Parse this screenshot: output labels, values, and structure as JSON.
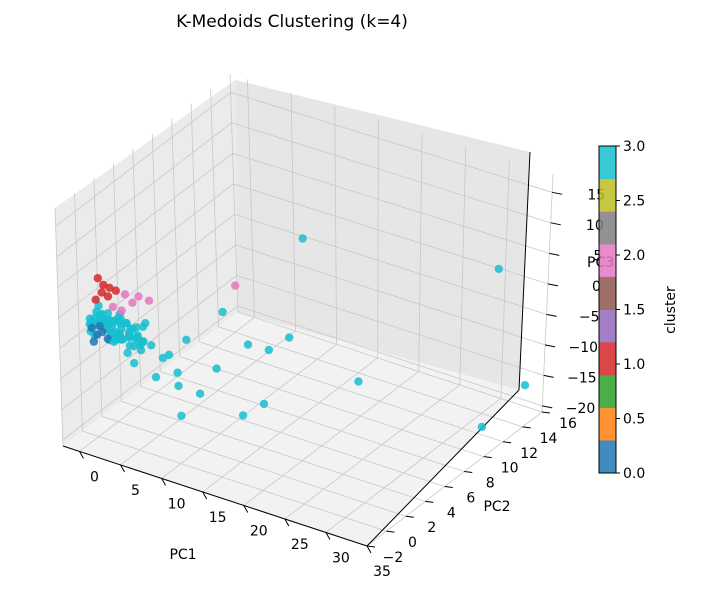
{
  "chart_data": {
    "type": "scatter",
    "projection": "3d",
    "title": "K-Medoids Clustering (k=4)",
    "xlabel": "PC1",
    "ylabel": "PC2",
    "zlabel": "PC3",
    "xlim": [
      -2,
      35
    ],
    "ylim": [
      -2,
      16
    ],
    "zlim": [
      -21,
      18
    ],
    "x_ticks": [
      "0",
      "5",
      "10",
      "15",
      "20",
      "25",
      "30",
      "35"
    ],
    "y_ticks": [
      "−2",
      "0",
      "2",
      "4",
      "6",
      "8",
      "10",
      "12",
      "14",
      "16"
    ],
    "z_ticks": [
      "−20",
      "−15",
      "−10",
      "−5",
      "0",
      "5",
      "10",
      "15"
    ],
    "grid": true,
    "colorbar": {
      "label": "cluster",
      "range": [
        0.0,
        3.0
      ],
      "ticks": [
        "0.0",
        "0.5",
        "1.0",
        "1.5",
        "2.0",
        "2.5",
        "3.0"
      ],
      "colormap": "tab10",
      "colors": [
        "#1f77b4",
        "#ff7f0e",
        "#2ca02c",
        "#d62728",
        "#9467bd",
        "#8c564b",
        "#e377c2",
        "#7f7f7f",
        "#bcbd22",
        "#17becf"
      ]
    },
    "cluster_colors": {
      "0": "#1f77b4",
      "1": "#d62728",
      "2": "#e377c2",
      "3": "#17becf"
    },
    "series": [
      {
        "cluster": 3,
        "points": [
          [
            32.5,
            13.0,
            5.0
          ],
          [
            33.5,
            11.0,
            -18.0
          ],
          [
            34.5,
            14.5,
            -15.0
          ],
          [
            22.0,
            8.0,
            -12.0
          ],
          [
            13.0,
            10.0,
            5.0
          ],
          [
            16.0,
            6.0,
            -5.0
          ],
          [
            14.0,
            3.5,
            -4.0
          ],
          [
            16.5,
            3.0,
            -12.0
          ],
          [
            13.0,
            6.5,
            -9.0
          ],
          [
            12.0,
            2.0,
            -7.0
          ],
          [
            9.0,
            1.5,
            -3.0
          ],
          [
            11.0,
            3.5,
            0.0
          ],
          [
            8.5,
            1.0,
            -8.0
          ],
          [
            9.5,
            0.5,
            -14.0
          ],
          [
            10.0,
            2.0,
            -12.0
          ],
          [
            14.0,
            3.0,
            -15.0
          ],
          [
            6.0,
            0.5,
            -4.0
          ],
          [
            7.5,
            1.0,
            -5.5
          ],
          [
            5.5,
            0.0,
            -3.0
          ],
          [
            4.5,
            0.0,
            -7.0
          ],
          [
            6.5,
            0.5,
            -9.0
          ],
          [
            7.0,
            0.8,
            -6.0
          ],
          [
            5.0,
            0.3,
            -5.0
          ],
          [
            8.0,
            1.5,
            -11.0
          ],
          [
            3.0,
            -0.5,
            -2.0
          ],
          [
            4.0,
            0.0,
            -3.0
          ],
          [
            2.5,
            -0.3,
            -4.0
          ],
          [
            3.5,
            0.2,
            -6.0
          ]
        ]
      },
      {
        "cluster": 1,
        "points": [
          [
            1.0,
            -0.5,
            6.0
          ],
          [
            1.5,
            -0.4,
            5.0
          ],
          [
            2.0,
            -0.2,
            4.5
          ],
          [
            1.2,
            -0.3,
            3.5
          ],
          [
            2.5,
            0.0,
            4.0
          ],
          [
            0.8,
            -0.6,
            2.5
          ],
          [
            1.8,
            -0.2,
            3.0
          ]
        ]
      },
      {
        "cluster": 2,
        "points": [
          [
            3.0,
            0.5,
            3.0
          ],
          [
            3.5,
            0.8,
            1.5
          ],
          [
            4.0,
            1.0,
            2.5
          ],
          [
            2.8,
            0.3,
            0.5
          ],
          [
            12.5,
            3.5,
            5.0
          ],
          [
            5.0,
            1.2,
            2.0
          ],
          [
            2.0,
            0.1,
            1.0
          ]
        ]
      },
      {
        "cluster": 0,
        "points": [
          [
            0.5,
            -0.8,
            -2.0
          ],
          [
            1.0,
            -0.7,
            -3.0
          ],
          [
            1.5,
            -0.6,
            -2.5
          ],
          [
            2.0,
            -0.5,
            -3.5
          ],
          [
            0.8,
            -0.9,
            -4.0
          ],
          [
            1.3,
            -0.7,
            -1.5
          ]
        ]
      }
    ],
    "dense_core": {
      "cluster": 3,
      "count": 70,
      "center": [
        2.5,
        0.0,
        -2.0
      ],
      "spread": [
        3.0,
        0.6,
        1.8
      ],
      "seed": 7
    }
  }
}
